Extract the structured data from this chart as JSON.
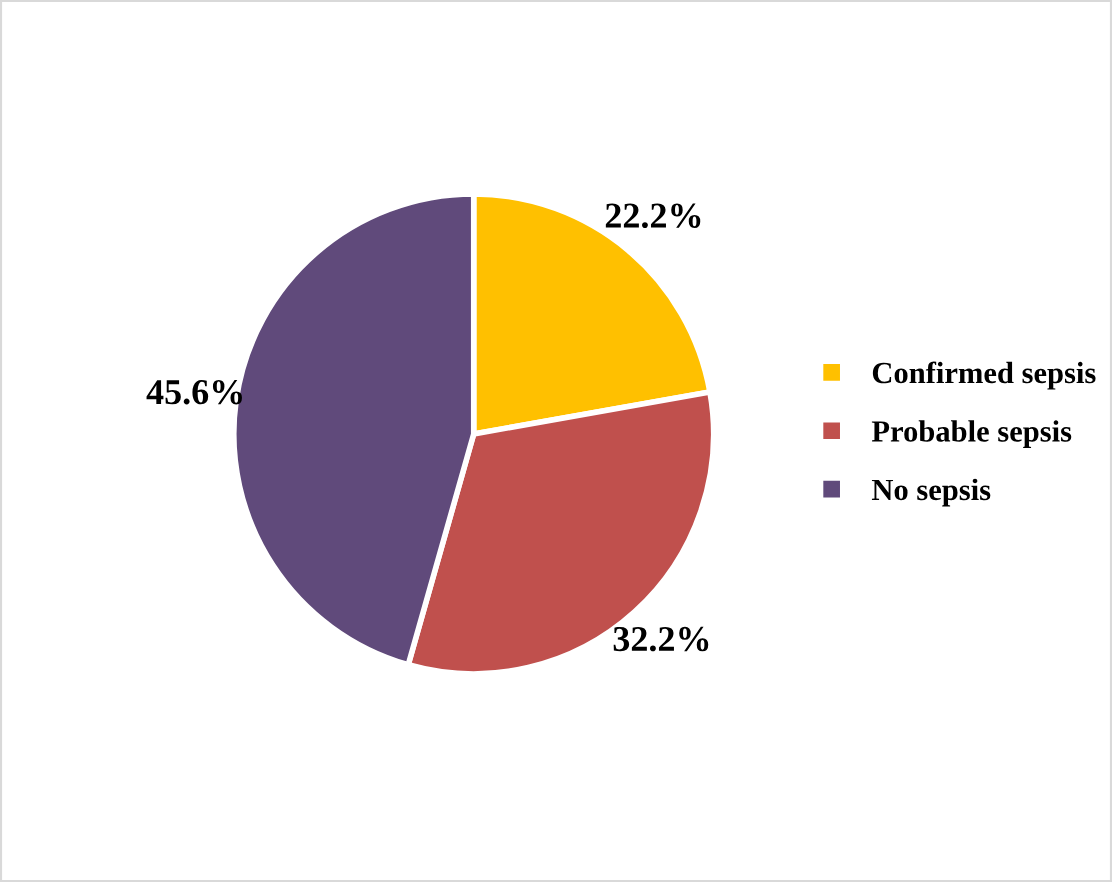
{
  "chart_data": {
    "type": "pie",
    "categories": [
      "Confirmed sepsis",
      "Probable sepsis",
      "No sepsis"
    ],
    "values": [
      22.2,
      32.2,
      45.6
    ],
    "colors": [
      "#ffc000",
      "#c0504d",
      "#604a7b"
    ],
    "value_labels": [
      "22.2%",
      "32.2%",
      "45.6%"
    ],
    "legend": "right"
  }
}
